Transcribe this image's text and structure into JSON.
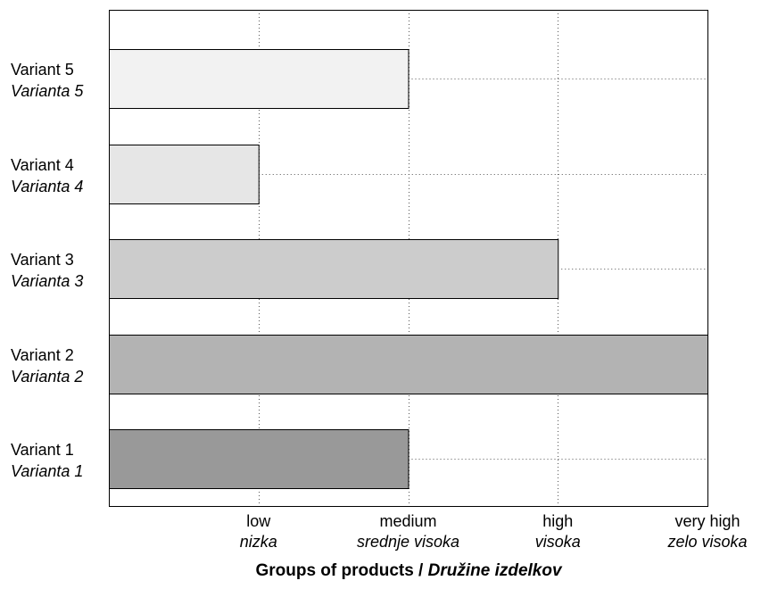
{
  "chart_data": {
    "type": "bar",
    "orientation": "horizontal",
    "categories": [
      {
        "label": "Variant 1",
        "label_sl": "Varianta 1"
      },
      {
        "label": "Variant 2",
        "label_sl": "Varianta 2"
      },
      {
        "label": "Variant 3",
        "label_sl": "Varianta 3"
      },
      {
        "label": "Variant 4",
        "label_sl": "Varianta 4"
      },
      {
        "label": "Variant 5",
        "label_sl": "Varianta 5"
      }
    ],
    "values": [
      2,
      4,
      3,
      1,
      2
    ],
    "xlim": [
      0,
      4
    ],
    "x_ticks": [
      {
        "value": 1,
        "label": "low",
        "label_sl": "nizka"
      },
      {
        "value": 2,
        "label": "medium",
        "label_sl": "srednje visoka"
      },
      {
        "value": 3,
        "label": "high",
        "label_sl": "visoka"
      },
      {
        "value": 4,
        "label": "very high",
        "label_sl": "zelo visoka"
      }
    ],
    "xlabel": "Groups of products / ",
    "xlabel_sl": "Družine izdelkov",
    "bar_colors": [
      "#999999",
      "#b3b3b3",
      "#cccccc",
      "#e6e6e6",
      "#f2f2f2"
    ],
    "grid": "dotted vertical lines at ticks; dotted extension lines beyond bar ends",
    "legend": "none"
  }
}
